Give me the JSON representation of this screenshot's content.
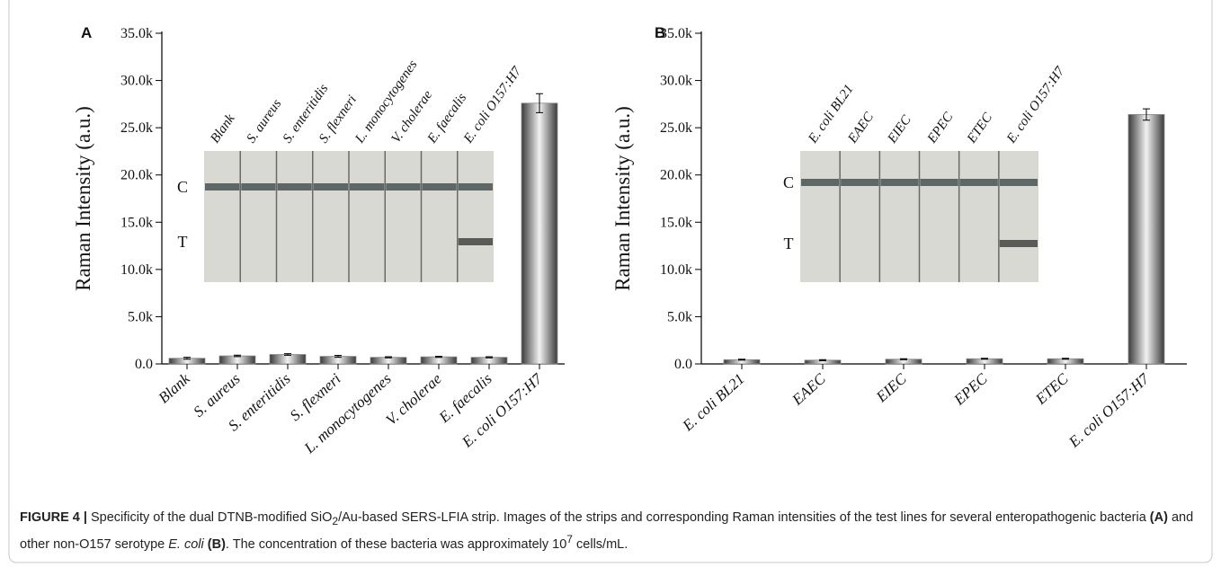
{
  "chart_data": [
    {
      "type": "bar",
      "panel": "A",
      "ylabel": "Raman Intensity (a.u.)",
      "categories": [
        "Blank",
        "S. aureus",
        "S. enteritidis",
        "S. flexneri",
        "L. monocytogenes",
        "V. cholerae",
        "E. faecalis",
        "E. coli O157:H7"
      ],
      "values": [
        600,
        850,
        1000,
        800,
        700,
        750,
        700,
        27600
      ],
      "errors": [
        100,
        80,
        80,
        100,
        60,
        60,
        60,
        1000
      ],
      "color": "#8a8a8a",
      "ylim": [
        0,
        35000
      ],
      "yticks": [
        {
          "value": 0,
          "label": "0.0"
        },
        {
          "value": 5000,
          "label": "5.0k"
        },
        {
          "value": 10000,
          "label": "10.0k"
        },
        {
          "value": 15000,
          "label": "15.0k"
        },
        {
          "value": 20000,
          "label": "20.0k"
        },
        {
          "value": 25000,
          "label": "25.0k"
        },
        {
          "value": 30000,
          "label": "30.0k"
        },
        {
          "value": 35000,
          "label": "35.0k"
        }
      ],
      "inset": {
        "strips": [
          "Blank",
          "S. aureus",
          "S. enteritidis",
          "S. flexneri",
          "L. monocytogenes",
          "V. cholerae",
          "E. faecalis",
          "E. coli O157:H7"
        ],
        "lines": [
          "C",
          "T"
        ]
      }
    },
    {
      "type": "bar",
      "panel": "B",
      "ylabel": "Raman Intensity (a.u.)",
      "categories": [
        "E. coli BL21",
        "EAEC",
        "EIEC",
        "EPEC",
        "ETEC",
        "E. coli O157:H7"
      ],
      "values": [
        450,
        400,
        500,
        550,
        550,
        26400
      ],
      "errors": [
        50,
        50,
        50,
        50,
        50,
        600
      ],
      "color": "#8a8a8a",
      "ylim": [
        0,
        35000
      ],
      "yticks": [
        {
          "value": 0,
          "label": "0.0"
        },
        {
          "value": 5000,
          "label": "5.0k"
        },
        {
          "value": 10000,
          "label": "10.0k"
        },
        {
          "value": 15000,
          "label": "15.0k"
        },
        {
          "value": 20000,
          "label": "20.0k"
        },
        {
          "value": 25000,
          "label": "25.0k"
        },
        {
          "value": 30000,
          "label": "30.0k"
        },
        {
          "value": 35000,
          "label": "35.0k"
        }
      ],
      "inset": {
        "strips": [
          "E. coli BL21",
          "EAEC",
          "EIEC",
          "EPEC",
          "ETEC",
          "E. coli O157:H7"
        ],
        "lines": [
          "C",
          "T"
        ]
      }
    }
  ],
  "caption": [
    "FIGURE 4 |",
    " Specificity of the dual DTNB-modified SiO",
    "2",
    "/Au-based SERS-LFIA strip. Images of the strips and corresponding Raman intensities of the test lines for several enteropathogenic bacteria ",
    "(A)",
    " and other non-O157 serotype ",
    "E. coli",
    " (B)",
    ". The concentration of these bacteria was approximately 10",
    "7",
    " cells/mL."
  ]
}
